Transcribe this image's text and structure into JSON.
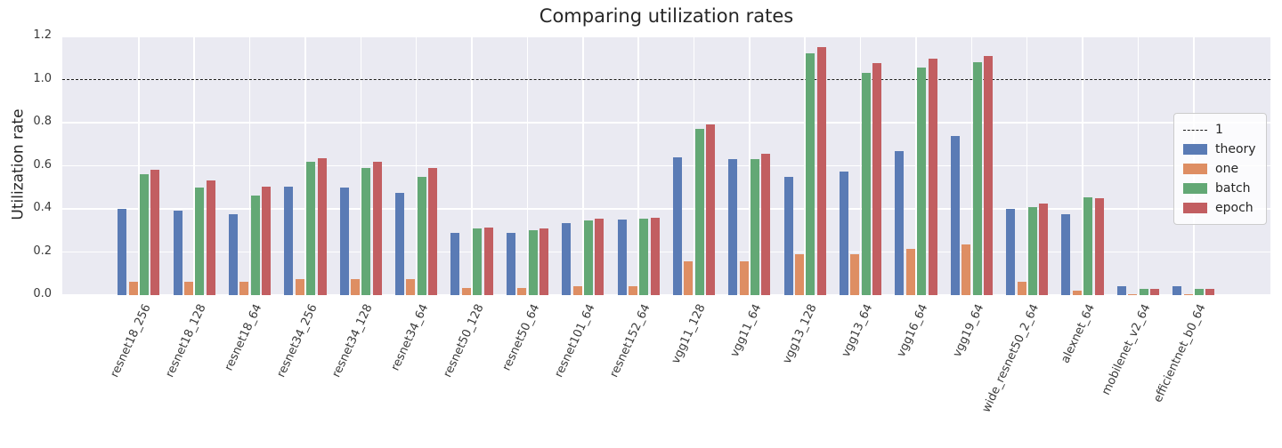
{
  "chart_data": {
    "type": "bar",
    "title": "Comparing utilization rates",
    "xlabel": "",
    "ylabel": "Utilization rate",
    "ylim": [
      0,
      1.2
    ],
    "yticks": [
      "0.0",
      "0.2",
      "0.4",
      "0.6",
      "0.8",
      "1.0",
      "1.2"
    ],
    "grid": true,
    "legend_position": "right",
    "reference_line": {
      "y": 1.0,
      "label": "1",
      "style": "dashed",
      "color": "#1c1c1c"
    },
    "categories": [
      "resnet18_256",
      "resnet18_128",
      "resnet18_64",
      "resnet34_256",
      "resnet34_128",
      "resnet34_64",
      "resnet50_128",
      "resnet50_64",
      "resnet101_64",
      "resnet152_64",
      "vgg11_128",
      "vgg11_64",
      "vgg13_128",
      "vgg13_64",
      "vgg16_64",
      "vgg19_64",
      "wide_resnet50_2_64",
      "alexnet_64",
      "mobilenet_v2_64",
      "efficientnet_b0_64"
    ],
    "series": [
      {
        "name": "theory",
        "color": "#5a7bb5",
        "values": [
          0.4,
          0.39,
          0.375,
          0.505,
          0.5,
          0.475,
          0.29,
          0.29,
          0.335,
          0.35,
          0.64,
          0.63,
          0.55,
          0.575,
          0.67,
          0.74,
          0.4,
          0.375,
          0.04,
          0.04
        ]
      },
      {
        "name": "one",
        "color": "#de8e63",
        "values": [
          0.06,
          0.06,
          0.06,
          0.075,
          0.075,
          0.075,
          0.035,
          0.035,
          0.04,
          0.04,
          0.155,
          0.155,
          0.19,
          0.19,
          0.215,
          0.235,
          0.06,
          0.02,
          0.005,
          0.005
        ]
      },
      {
        "name": "batch",
        "color": "#63a875",
        "values": [
          0.56,
          0.5,
          0.46,
          0.62,
          0.59,
          0.55,
          0.31,
          0.3,
          0.345,
          0.355,
          0.77,
          0.63,
          1.12,
          1.03,
          1.055,
          1.08,
          0.41,
          0.455,
          0.03,
          0.03
        ]
      },
      {
        "name": "epoch",
        "color": "#c25e61",
        "values": [
          0.58,
          0.53,
          0.505,
          0.635,
          0.62,
          0.59,
          0.315,
          0.31,
          0.355,
          0.36,
          0.79,
          0.655,
          1.15,
          1.075,
          1.095,
          1.11,
          0.425,
          0.45,
          0.03,
          0.03
        ]
      }
    ],
    "colors": {
      "plot_background": "#eaeaf2",
      "gridline": "#ffffff",
      "text": "#262626"
    }
  }
}
